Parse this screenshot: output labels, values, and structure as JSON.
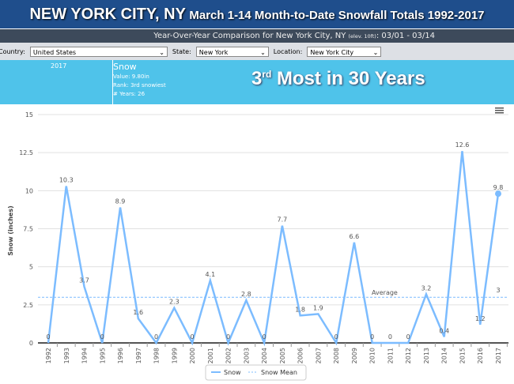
{
  "header": {
    "title_main": "NEW YORK CITY, NY",
    "title_rest": "March 1-14 Month-to-Date Snowfall Totals 1992-2017",
    "subtitle": "Year-Over-Year Comparison for New York City, NY",
    "subtitle_elev": "(elev. 10ft)",
    "subtitle_dates": ": 03/01 - 03/14"
  },
  "filters": {
    "country_label": "Country:",
    "country": "United States",
    "state_label": "State:",
    "state": "New York",
    "location_label": "Location:",
    "location": "New York City"
  },
  "banner": {
    "year": "2017",
    "series": "Snow",
    "value": "Value: 9.80in",
    "rank": "Rank: 3rd snowiest",
    "years": "# Years: 26",
    "headline_num": "3",
    "headline_sup": "rd",
    "headline_rest": " Most in 30 Years"
  },
  "chart_data": {
    "type": "line",
    "title": "",
    "xlabel": "",
    "ylabel": "Snow (inches)",
    "ylim": [
      0,
      15
    ],
    "yticks": [
      "0",
      "2.5",
      "5",
      "7.5",
      "10",
      "12.5",
      "15"
    ],
    "categories": [
      "1992",
      "1993",
      "1994",
      "1995",
      "1996",
      "1997",
      "1998",
      "1999",
      "2000",
      "2001",
      "2002",
      "2003",
      "2004",
      "2005",
      "2006",
      "2007",
      "2008",
      "2009",
      "2010",
      "2011",
      "2012",
      "2013",
      "2014",
      "2015",
      "2016",
      "2017"
    ],
    "series": [
      {
        "name": "Snow",
        "color": "#7cbcff",
        "values": [
          0,
          10.3,
          3.7,
          0,
          8.9,
          1.6,
          0,
          2.3,
          0,
          4.1,
          0,
          2.8,
          0,
          7.7,
          1.8,
          1.9,
          0,
          6.6,
          0,
          0,
          0,
          3.2,
          0.4,
          12.6,
          1.2,
          9.8
        ]
      },
      {
        "name": "Snow Mean",
        "color": "#7cbcff",
        "dashed": true,
        "value": 3
      }
    ],
    "mean_label": "Average",
    "mean_value_label": "3",
    "legend": "bottom-center"
  }
}
